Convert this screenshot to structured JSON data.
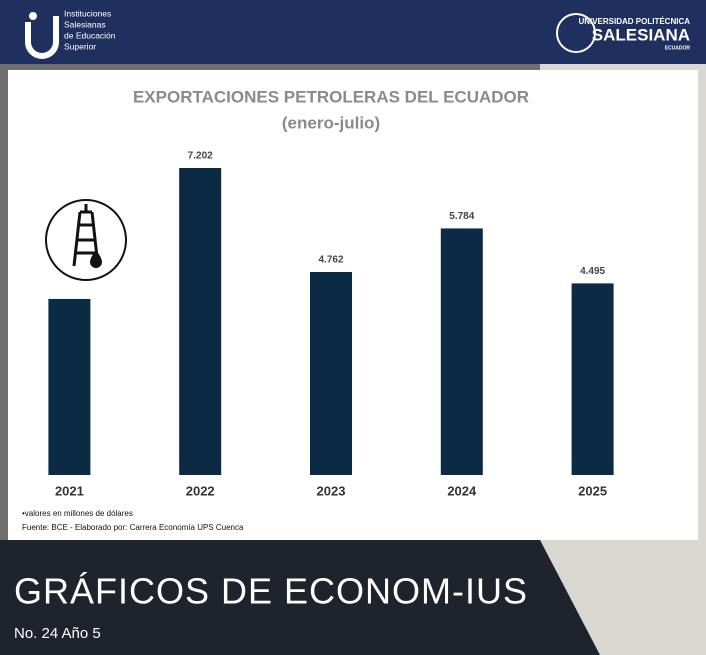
{
  "header": {
    "left_logo": [
      "Instituciones",
      "Salesianas",
      "de Educación",
      "Superior"
    ],
    "right_logo": [
      "UNIVERSIDAD POLITÉCNICA",
      "SALESIANA",
      "ECUADOR"
    ]
  },
  "chart_data": {
    "type": "bar",
    "title": "EXPORTACIONES PETROLERAS DEL ECUADOR",
    "subtitle": "(enero-julio)",
    "categories": [
      "2021",
      "2022",
      "2023",
      "2024",
      "2025"
    ],
    "values": [
      4130,
      7202,
      4762,
      5784,
      4495
    ],
    "value_labels": [
      null,
      "7.202",
      "4.762",
      "5.784",
      "4.495"
    ],
    "color": "#0c2a44",
    "notes": [
      "•valores en millones de dólares",
      "Fuente: BCE - Elaborado por: Carrera Economía UPS Cuenca"
    ]
  },
  "footer": {
    "title": "GRÁFICOS DE ECONOM-IUS",
    "issue": "No. 24 Año 5"
  }
}
